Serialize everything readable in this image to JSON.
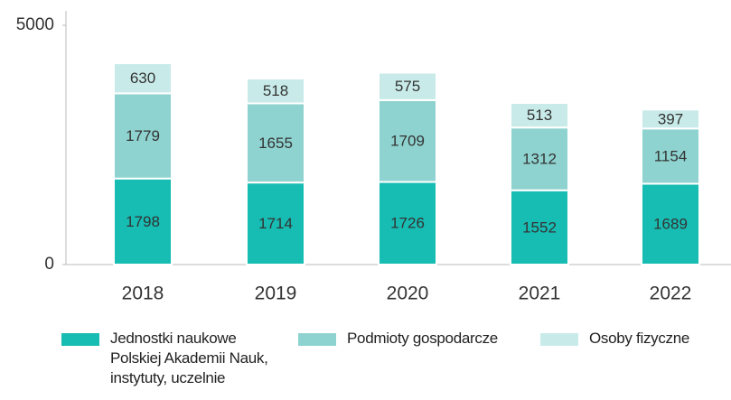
{
  "chart_data": {
    "type": "stacked-bar",
    "categories": [
      "2018",
      "2019",
      "2020",
      "2021",
      "2022"
    ],
    "series": [
      {
        "name": "Jednostki naukowe\nPolskiej Akademii Nauk,\ninstytuty, uczelnie",
        "color": "#17bcb3",
        "values": [
          1798,
          1714,
          1726,
          1552,
          1689
        ]
      },
      {
        "name": "Podmioty gospodarcze",
        "color": "#8ed3cf",
        "values": [
          1779,
          1655,
          1709,
          1312,
          1154
        ]
      },
      {
        "name": "Osoby fizyczne",
        "color": "#c8ebe9",
        "values": [
          630,
          518,
          575,
          513,
          397
        ]
      }
    ],
    "ylim": [
      0,
      5000
    ],
    "yticks": [
      0,
      5000
    ],
    "grid": false
  }
}
